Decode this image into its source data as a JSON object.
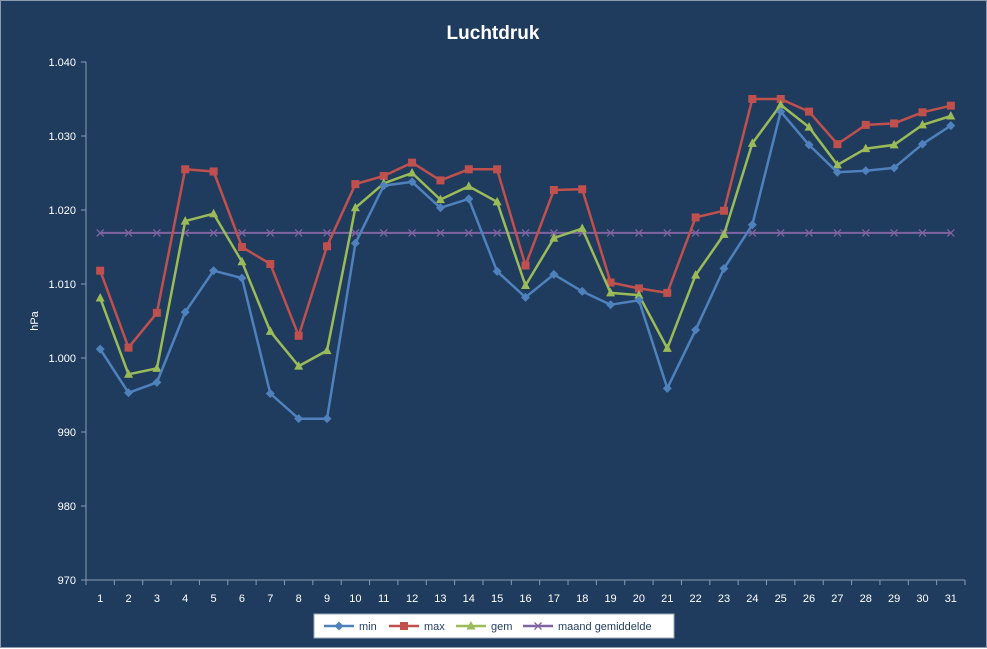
{
  "chart_data": {
    "type": "line",
    "title": "Luchtdruk",
    "xlabel": "",
    "ylabel": "hPa",
    "ylim": [
      970,
      1040
    ],
    "y_ticks": [
      970,
      980,
      990,
      1000,
      1010,
      1020,
      1030,
      1040
    ],
    "y_tick_labels": [
      "970",
      "980",
      "990",
      "1.000",
      "1.010",
      "1.020",
      "1.030",
      "1.040"
    ],
    "categories": [
      "1",
      "2",
      "3",
      "4",
      "5",
      "6",
      "7",
      "8",
      "9",
      "10",
      "11",
      "12",
      "13",
      "14",
      "15",
      "16",
      "17",
      "18",
      "19",
      "20",
      "21",
      "22",
      "23",
      "24",
      "25",
      "26",
      "27",
      "28",
      "29",
      "30",
      "31"
    ],
    "grid": false,
    "legend_position": "bottom",
    "series": [
      {
        "name": "min",
        "color": "#4f81bd",
        "marker": "diamond",
        "values": [
          1001.2,
          995.3,
          996.7,
          1006.2,
          1011.8,
          1010.8,
          995.2,
          991.8,
          991.8,
          1015.5,
          1023.3,
          1023.8,
          1020.3,
          1021.5,
          1011.7,
          1008.2,
          1011.3,
          1009.0,
          1007.2,
          1007.8,
          995.9,
          1003.8,
          1012.1,
          1018.0,
          1033.3,
          1028.8,
          1025.1,
          1025.3,
          1025.7,
          1028.9,
          1031.4
        ]
      },
      {
        "name": "max",
        "color": "#c0504d",
        "marker": "square",
        "values": [
          1011.8,
          1001.4,
          1006.1,
          1025.5,
          1025.2,
          1015.0,
          1012.7,
          1003.0,
          1015.1,
          1023.5,
          1024.6,
          1026.4,
          1024.0,
          1025.5,
          1025.5,
          1012.5,
          1022.7,
          1022.8,
          1010.2,
          1009.4,
          1008.8,
          1019.0,
          1019.9,
          1035.0,
          1035.0,
          1033.3,
          1028.9,
          1031.5,
          1031.7,
          1033.2,
          1034.1
        ]
      },
      {
        "name": "gem",
        "color": "#9bbb59",
        "marker": "triangle",
        "values": [
          1008.1,
          997.8,
          998.6,
          1018.5,
          1019.5,
          1013.0,
          1003.6,
          998.9,
          1001.0,
          1020.3,
          1023.6,
          1025.0,
          1021.4,
          1023.2,
          1021.1,
          1009.8,
          1016.2,
          1017.5,
          1008.8,
          1008.5,
          1001.3,
          1011.2,
          1016.7,
          1029.0,
          1034.2,
          1031.2,
          1026.1,
          1028.3,
          1028.8,
          1031.5,
          1032.7
        ]
      },
      {
        "name": "maand gemiddelde",
        "color": "#8064a2",
        "marker": "x",
        "values": [
          1016.9,
          1016.9,
          1016.9,
          1016.9,
          1016.9,
          1016.9,
          1016.9,
          1016.9,
          1016.9,
          1016.9,
          1016.9,
          1016.9,
          1016.9,
          1016.9,
          1016.9,
          1016.9,
          1016.9,
          1016.9,
          1016.9,
          1016.9,
          1016.9,
          1016.9,
          1016.9,
          1016.9,
          1016.9,
          1016.9,
          1016.9,
          1016.9,
          1016.9,
          1016.9,
          1016.9
        ]
      }
    ]
  }
}
